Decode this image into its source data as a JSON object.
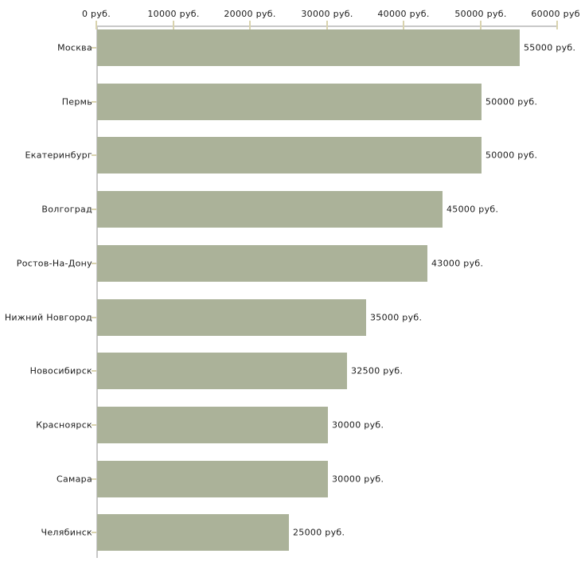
{
  "chart_data": {
    "type": "bar",
    "orientation": "horizontal",
    "title": "",
    "xlabel": "",
    "ylabel": "",
    "grid": false,
    "legend": false,
    "categories": [
      "Москва",
      "Пермь",
      "Екатеринбург",
      "Волгоград",
      "Ростов-На-Дону",
      "Нижний Новгород",
      "Новосибирск",
      "Красноярск",
      "Самара",
      "Челябинск"
    ],
    "values": [
      55000,
      50000,
      50000,
      45000,
      43000,
      35000,
      32500,
      30000,
      30000,
      25000
    ],
    "value_labels": [
      "55000 руб.",
      "50000 руб.",
      "50000 руб.",
      "45000 руб.",
      "43000 руб.",
      "35000 руб.",
      "32500 руб.",
      "30000 руб.",
      "30000 руб.",
      "25000 руб."
    ],
    "x_axis": {
      "position": "top",
      "min": 0,
      "max": 60000,
      "ticks": [
        0,
        10000,
        20000,
        30000,
        40000,
        50000,
        60000
      ],
      "tick_labels": [
        "0 руб.",
        "10000 руб.",
        "20000 руб.",
        "30000 руб.",
        "40000 руб.",
        "50000 руб.",
        "60000 руб."
      ]
    },
    "colors": {
      "bar": "#abb299",
      "axis_line": "#c8c8c8",
      "tick_mark": "#d9d3ae",
      "text": "#1a1a1a",
      "background": "#ffffff"
    }
  }
}
